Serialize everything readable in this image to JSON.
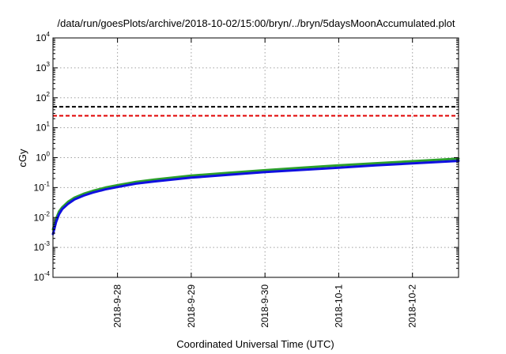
{
  "chart_data": {
    "type": "line",
    "title": "/data/run/goesPlots/archive/2018-10-02/15:00/bryn/../bryn/5daysMoonAccumulated.plot",
    "xlabel": "Coordinated Universal Time (UTC)",
    "ylabel": "cGy",
    "y_scale": "log",
    "ylim": [
      0.0001,
      10000
    ],
    "y_ticks": [
      {
        "base": "10",
        "exp": "-4",
        "value": 0.0001
      },
      {
        "base": "10",
        "exp": "-3",
        "value": 0.001
      },
      {
        "base": "10",
        "exp": "-2",
        "value": 0.01
      },
      {
        "base": "10",
        "exp": "-1",
        "value": 0.1
      },
      {
        "base": "10",
        "exp": "0",
        "value": 1
      },
      {
        "base": "10",
        "exp": "1",
        "value": 10
      },
      {
        "base": "10",
        "exp": "2",
        "value": 100
      },
      {
        "base": "10",
        "exp": "3",
        "value": 1000
      },
      {
        "base": "10",
        "exp": "4",
        "value": 10000
      }
    ],
    "xlim": [
      "2018-09-27 03:00",
      "2018-10-02 15:00"
    ],
    "x_ticks": [
      "2018-9-28",
      "2018-9-29",
      "2018-9-30",
      "2018-10-1",
      "2018-10-2"
    ],
    "grid": true,
    "reference_lines": [
      {
        "y": 50,
        "color": "#000000",
        "style": "dashed"
      },
      {
        "y": 25,
        "color": "#e00000",
        "style": "dashed"
      }
    ],
    "series": [
      {
        "color": "#2ca02c",
        "x": [
          "2018-09-27 03:00",
          "2018-09-27 04:00",
          "2018-09-27 05:00",
          "2018-09-27 06:00",
          "2018-09-27 08:00",
          "2018-09-27 10:00",
          "2018-09-27 13:00",
          "2018-09-27 16:00",
          "2018-09-27 20:00",
          "2018-09-28 00:00",
          "2018-09-28 06:00",
          "2018-09-28 12:00",
          "2018-09-29 00:00",
          "2018-09-29 12:00",
          "2018-09-30 00:00",
          "2018-09-30 12:00",
          "2018-10-01 00:00",
          "2018-10-01 12:00",
          "2018-10-02 00:00",
          "2018-10-02 15:00"
        ],
        "y": [
          0.004,
          0.009,
          0.016,
          0.022,
          0.034,
          0.046,
          0.062,
          0.078,
          0.1,
          0.12,
          0.155,
          0.185,
          0.25,
          0.31,
          0.38,
          0.46,
          0.55,
          0.65,
          0.76,
          0.93
        ]
      },
      {
        "color": "#1010e0",
        "x": [
          "2018-09-27 03:00",
          "2018-09-27 04:00",
          "2018-09-27 05:00",
          "2018-09-27 06:00",
          "2018-09-27 08:00",
          "2018-09-27 10:00",
          "2018-09-27 13:00",
          "2018-09-27 16:00",
          "2018-09-27 20:00",
          "2018-09-28 00:00",
          "2018-09-28 06:00",
          "2018-09-28 12:00",
          "2018-09-29 00:00",
          "2018-09-29 12:00",
          "2018-09-30 00:00",
          "2018-09-30 12:00",
          "2018-10-01 00:00",
          "2018-10-01 12:00",
          "2018-10-02 00:00",
          "2018-10-02 15:00"
        ],
        "y": [
          0.0028,
          0.007,
          0.013,
          0.019,
          0.029,
          0.04,
          0.054,
          0.068,
          0.087,
          0.104,
          0.135,
          0.16,
          0.215,
          0.265,
          0.33,
          0.39,
          0.46,
          0.55,
          0.64,
          0.78
        ]
      }
    ]
  }
}
